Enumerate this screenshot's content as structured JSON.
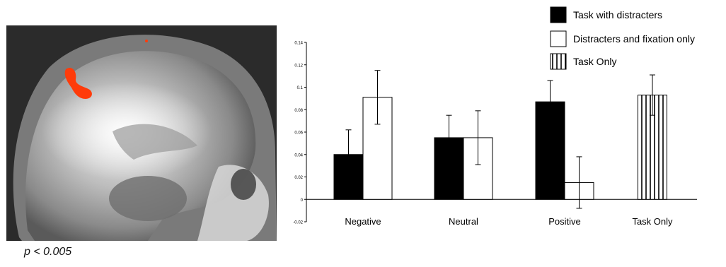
{
  "figure": {
    "significance_label": "p < 0.005"
  },
  "colors": {
    "activation": "#ff3b0a",
    "bar_dark": "#000000",
    "bar_light": "#ffffff",
    "axis": "#000000"
  },
  "chart_data": {
    "type": "bar",
    "title": "",
    "xlabel": "",
    "ylabel": "",
    "categories": [
      "Negative",
      "Neutral",
      "Positive",
      "Task Only"
    ],
    "ylim": [
      -0.02,
      0.14
    ],
    "yticks": [
      -0.02,
      0,
      0.02,
      0.04,
      0.06,
      0.08,
      0.1,
      0.12,
      0.14
    ],
    "ytick_labels": [
      "-0.02",
      "0",
      "0.02",
      "0.04",
      "0.06",
      "0.08",
      "0.1",
      "0.12",
      "0.14"
    ],
    "legend_position": "top-right",
    "grid": false,
    "series": [
      {
        "name": "Task with distracters",
        "fill": "solid-black",
        "values": [
          0.04,
          0.055,
          0.087,
          null
        ],
        "errors": [
          0.022,
          0.02,
          0.019,
          null
        ]
      },
      {
        "name": "Distracters and fixation only",
        "fill": "white",
        "values": [
          0.091,
          0.055,
          0.015,
          null
        ],
        "errors": [
          0.024,
          0.024,
          0.023,
          null
        ]
      },
      {
        "name": "Task Only",
        "fill": "vertical-stripes",
        "values": [
          null,
          null,
          null,
          0.093
        ],
        "errors": [
          null,
          null,
          null,
          0.018
        ]
      }
    ]
  }
}
